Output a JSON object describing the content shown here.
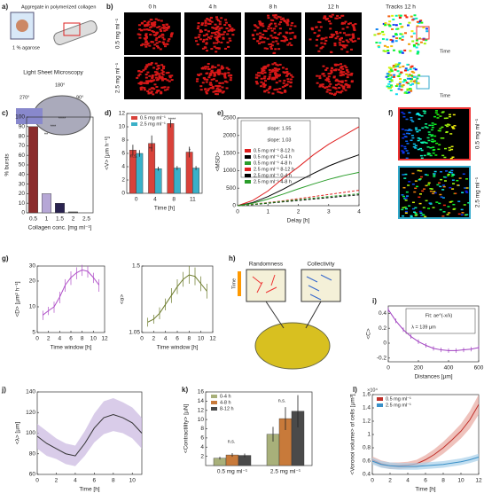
{
  "panel_labels": [
    "a)",
    "b)",
    "c)",
    "d)",
    "e)",
    "f)",
    "g)",
    "h)",
    "i)",
    "j)",
    "k)",
    "l)"
  ],
  "schematic": {
    "sample": "Aggregate in polymerized collagen",
    "agarose": "1 % agarose",
    "method": "Light Sheet Microscopy",
    "angles": [
      "180°",
      "270°",
      "90°"
    ]
  },
  "microscopy": {
    "columns": [
      "0 h",
      "4 h",
      "8 h",
      "12 h",
      "Tracks 12 h"
    ],
    "rows": [
      "0.5 mg ml⁻¹",
      "2.5 mg ml⁻¹"
    ],
    "colorbar": "Time"
  },
  "zoom": {
    "rows": [
      "0.5 mg ml⁻¹",
      "2.5 mg ml⁻¹"
    ]
  },
  "model": {
    "left": "Randomness",
    "right": "Collectivity",
    "colorbar": "Time"
  },
  "chart_data": [
    {
      "type": "bar",
      "xlabel": "Collagen conc. [mg ml⁻¹]",
      "ylabel": "% bursts",
      "categories": [
        "0.5",
        "1",
        "1.5",
        "2",
        "2.5"
      ],
      "values": [
        90,
        20,
        10,
        1,
        0
      ],
      "colors": [
        "#8b2c2c",
        "#b6a7d6",
        "#2a2450",
        "#555555",
        "#555555"
      ],
      "ylim": [
        0,
        100
      ],
      "yticks": [
        0,
        10,
        20,
        30,
        40,
        50,
        60,
        70,
        80,
        90,
        100
      ],
      "annotations": [
        "**",
        "***",
        "****"
      ]
    },
    {
      "type": "bar",
      "xlabel": "Time [h]",
      "ylabel": "<V> [µm h⁻¹]",
      "categories": [
        "0",
        "4",
        "8",
        "11"
      ],
      "series": [
        {
          "name": "0.5 mg ml⁻¹",
          "color": "#d9423a",
          "values": [
            6.5,
            7.5,
            10.5,
            6.2
          ],
          "errors": [
            0.8,
            1.2,
            0.6,
            0.8
          ]
        },
        {
          "name": "2.5 mg ml⁻¹",
          "color": "#3ab0c8",
          "values": [
            6.0,
            3.7,
            3.8,
            3.8
          ],
          "errors": [
            0.5,
            0.3,
            0.3,
            0.3
          ]
        }
      ],
      "ylim": [
        0,
        12
      ],
      "yticks": [
        0,
        2,
        4,
        6,
        8,
        10,
        12
      ],
      "annotations": [
        "n.s.",
        "**",
        "****",
        "*"
      ]
    },
    {
      "type": "line",
      "xlabel": "Delay [h]",
      "ylabel": "<MSD>",
      "x": [
        0,
        0.5,
        1,
        1.5,
        2,
        2.5,
        3,
        3.5,
        4
      ],
      "series": [
        {
          "name": "0.5 mg ml⁻¹ 8-12 h",
          "color": "#e02020",
          "values": [
            0,
            150,
            420,
            780,
            1100,
            1450,
            1750,
            2000,
            2250
          ]
        },
        {
          "name": "0.5 mg ml⁻¹ 0-4 h",
          "color": "#000000",
          "values": [
            0,
            90,
            260,
            470,
            700,
            920,
            1130,
            1300,
            1450
          ]
        },
        {
          "name": "0.5 mg ml⁻¹ 4-8 h",
          "color": "#2a9d2a",
          "values": [
            0,
            70,
            190,
            330,
            480,
            620,
            750,
            860,
            950
          ]
        },
        {
          "name": "2.5 mg ml⁻¹ 8-12 h",
          "color": "#e02020",
          "dashed": true,
          "values": [
            0,
            40,
            90,
            140,
            200,
            260,
            320,
            380,
            440
          ]
        },
        {
          "name": "2.5 mg ml⁻¹ 0-4 h",
          "color": "#000000",
          "dashed": true,
          "values": [
            0,
            30,
            70,
            110,
            150,
            190,
            230,
            270,
            310
          ]
        },
        {
          "name": "2.5 mg ml⁻¹ 4-8 h",
          "color": "#2a9d2a",
          "dashed": true,
          "values": [
            0,
            35,
            80,
            125,
            170,
            215,
            260,
            300,
            340
          ]
        }
      ],
      "xlim": [
        0,
        4
      ],
      "xticks": [
        0,
        1,
        2,
        3,
        4
      ],
      "ylim": [
        0,
        2500
      ],
      "yticks": [
        0,
        500,
        1000,
        1500,
        2000,
        2500
      ],
      "annotations": [
        "slope: 1.55",
        "slope: 1.03"
      ]
    },
    {
      "type": "line",
      "xlabel": "Time window [h]",
      "ylabel": "<D> [µm² h⁻¹]",
      "ylog": true,
      "x": [
        1,
        2,
        3,
        4,
        5,
        6,
        7,
        8,
        9,
        10,
        11
      ],
      "series": [
        {
          "color": "#b050c8",
          "values": [
            8,
            9,
            10,
            13,
            18,
            22,
            25,
            27,
            26,
            22,
            18
          ],
          "errors": [
            1,
            1,
            1.5,
            2,
            3,
            4,
            4,
            4,
            4,
            3,
            3
          ]
        }
      ],
      "xlim": [
        0,
        12
      ],
      "xticks": [
        0,
        2,
        4,
        6,
        8,
        10,
        12
      ],
      "ylim": [
        5,
        30
      ],
      "yticks": [
        5,
        10,
        20,
        30
      ]
    },
    {
      "type": "line",
      "xlabel": "Time window [h]",
      "ylabel": "<α>",
      "x": [
        1,
        2,
        3,
        4,
        5,
        6,
        7,
        8,
        9,
        10,
        11
      ],
      "series": [
        {
          "color": "#6b7a2a",
          "values": [
            1.12,
            1.14,
            1.18,
            1.24,
            1.3,
            1.36,
            1.41,
            1.44,
            1.43,
            1.38,
            1.33
          ],
          "errors": [
            0.03,
            0.03,
            0.04,
            0.04,
            0.05,
            0.05,
            0.05,
            0.06,
            0.06,
            0.05,
            0.05
          ]
        }
      ],
      "xlim": [
        0,
        12
      ],
      "xticks": [
        0,
        2,
        4,
        6,
        8,
        10,
        12
      ],
      "ylim": [
        1.05,
        1.5
      ],
      "yticks": [
        1.05,
        1.5
      ]
    },
    {
      "type": "line",
      "xlabel": "Distances [µm]",
      "ylabel": "<C>",
      "x": [
        0,
        50,
        100,
        150,
        200,
        250,
        300,
        350,
        400,
        450,
        500,
        550,
        600
      ],
      "series": [
        {
          "color": "#a040c0",
          "values": [
            0.45,
            0.3,
            0.18,
            0.09,
            0.02,
            -0.03,
            -0.07,
            -0.09,
            -0.1,
            -0.1,
            -0.09,
            -0.08,
            -0.06
          ],
          "errors": [
            0.03,
            0.03,
            0.03,
            0.03,
            0.03,
            0.03,
            0.03,
            0.03,
            0.03,
            0.03,
            0.03,
            0.03,
            0.03
          ]
        }
      ],
      "xlim": [
        0,
        600
      ],
      "xticks": [
        0,
        200,
        400,
        600
      ],
      "ylim": [
        -0.25,
        0.5
      ],
      "yticks": [
        -0.2,
        0,
        0.2,
        0.4
      ],
      "annotations": [
        "Fit: ae^(-x/λ)",
        "λ = 139 µm"
      ]
    },
    {
      "type": "line",
      "band": true,
      "xlabel": "Time [h]",
      "ylabel": "<λ> [µm]",
      "x": [
        0,
        1,
        2,
        3,
        4,
        5,
        6,
        7,
        8,
        9,
        10,
        11
      ],
      "series": [
        {
          "color": "#333333",
          "fill": "#c9b6e0",
          "values": [
            97,
            90,
            85,
            80,
            78,
            90,
            105,
            115,
            118,
            115,
            110,
            100
          ],
          "errors": [
            12,
            12,
            10,
            10,
            10,
            12,
            14,
            16,
            16,
            15,
            15,
            15
          ]
        }
      ],
      "xlim": [
        0,
        11
      ],
      "xticks": [
        0,
        2,
        4,
        6,
        8,
        10
      ],
      "ylim": [
        60,
        140
      ],
      "yticks": [
        60,
        80,
        100,
        120,
        140
      ]
    },
    {
      "type": "bar",
      "ylabel": "<Contractility> [µN]",
      "categories": [
        "0.5 mg ml⁻¹",
        "2.5 mg ml⁻¹"
      ],
      "series": [
        {
          "name": "0-4 h",
          "color": "#a8b07a",
          "values": [
            1.6,
            6.8
          ],
          "errors": [
            0.3,
            1.6
          ]
        },
        {
          "name": "4-8 h",
          "color": "#c87a3a",
          "values": [
            2.3,
            10.2
          ],
          "errors": [
            0.4,
            2.5
          ]
        },
        {
          "name": "8-12 h",
          "color": "#4a4a4a",
          "values": [
            2.2,
            11.8
          ],
          "errors": [
            0.4,
            3.5
          ]
        }
      ],
      "ylim": [
        0,
        16
      ],
      "yticks": [
        2,
        4,
        6,
        8,
        10,
        12,
        14,
        16
      ],
      "annotations": [
        "n.s.",
        "n.s."
      ]
    },
    {
      "type": "line",
      "band": true,
      "xlabel": "Time [h]",
      "ylabel": "<Voronoi volume> of cells [µm³]",
      "x": [
        0,
        1,
        2,
        3,
        4,
        5,
        6,
        7,
        8,
        9,
        10,
        11,
        12
      ],
      "series": [
        {
          "name": "0.5 mg ml⁻¹",
          "color": "#c0302a",
          "fill": "#e8a8a0",
          "values": [
            0.62,
            0.56,
            0.53,
            0.53,
            0.54,
            0.56,
            0.62,
            0.7,
            0.8,
            0.92,
            1.05,
            1.22,
            1.45
          ],
          "errors": [
            0.05,
            0.05,
            0.05,
            0.05,
            0.05,
            0.06,
            0.07,
            0.08,
            0.09,
            0.1,
            0.11,
            0.13,
            0.15
          ]
        },
        {
          "name": "2.5 mg ml⁻¹",
          "color": "#3a90c8",
          "fill": "#a8d0ea",
          "values": [
            0.6,
            0.55,
            0.53,
            0.52,
            0.52,
            0.52,
            0.53,
            0.54,
            0.55,
            0.57,
            0.59,
            0.62,
            0.66
          ],
          "errors": [
            0.05,
            0.05,
            0.05,
            0.05,
            0.05,
            0.05,
            0.05,
            0.05,
            0.05,
            0.05,
            0.05,
            0.05,
            0.05
          ]
        }
      ],
      "xlim": [
        0,
        12
      ],
      "xticks": [
        0,
        2,
        4,
        6,
        8,
        10,
        12
      ],
      "ylim": [
        0.4,
        1.6
      ],
      "yticks": [
        0.4,
        0.6,
        0.8,
        1,
        1.2,
        1.4,
        1.6
      ],
      "annotations": [
        "×10⁴"
      ]
    }
  ]
}
